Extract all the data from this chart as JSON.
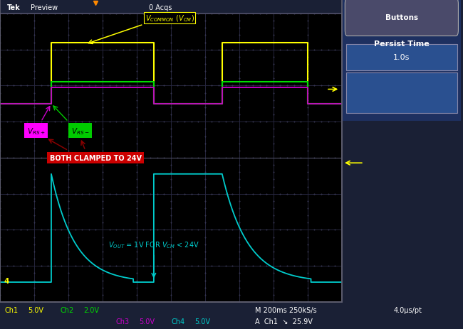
{
  "bg_outer": "#2a2a4a",
  "screen_bg": "#000000",
  "grid_color": "#333355",
  "grid_major_color": "#3a3a5a",
  "header_bg": "#1a1a3a",
  "right_panel_bg": "#1a2a4a",
  "bottom_bar_bg": "#000000",
  "ch1_color": "#ffff00",
  "ch2_color": "#00dd00",
  "ch3_color": "#cc00cc",
  "ch4_color": "#00cccc",
  "persist_time_label": "Persist Time",
  "persist_time_value": "1.0s",
  "buttons_label": "Buttons",
  "bottom_labels": [
    [
      "Ch1",
      "5.0V",
      "#ffff00"
    ],
    [
      "Ch2",
      "2.0V",
      "#00dd00"
    ],
    [
      "Ch3",
      "5.0V",
      "#cc00cc"
    ],
    [
      "Ch4",
      "5.0V",
      "#00cccc"
    ]
  ],
  "bottom_right1": "M 200ms 250kS/s",
  "bottom_right2": "4.0μs/pt",
  "bottom_trigger": "A  Ch1  ↘  25.9V",
  "vcm_label": "V₀₀₀₀₀₀₀ (V₀₀)",
  "vrs_plus_label": "V₀₀₀₀",
  "vrs_minus_label": "V₀₀₀",
  "clamp_label": "BOTH CLAMPED TO 24V",
  "vout_label": "V₀₀₀ = 1V FOR V₀₀ < 24V",
  "num_hdiv": 10,
  "num_vdiv": 8
}
